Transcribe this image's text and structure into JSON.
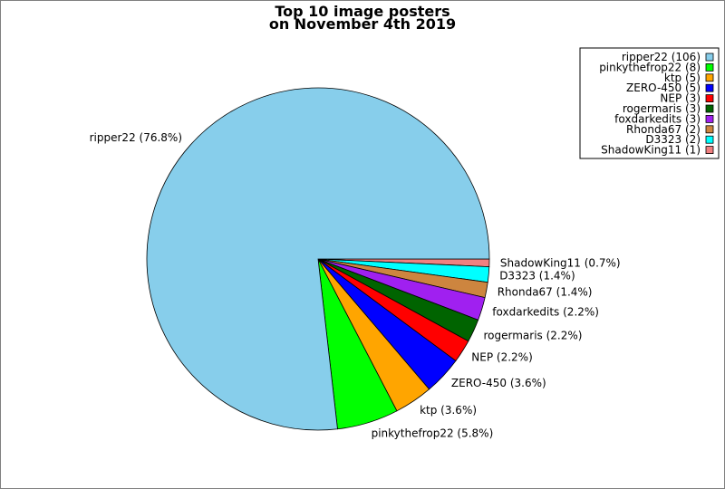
{
  "chart_data": {
    "type": "pie",
    "title": "Top 10 image posters",
    "subtitle": "on November 4th 2019",
    "slices": [
      {
        "name": "ripper22",
        "value": 106,
        "percent_label": "ripper22 (76.8%)",
        "legend_label": "ripper22 (106)",
        "color": "#87ceeb"
      },
      {
        "name": "pinkythefrop22",
        "value": 8,
        "percent_label": "pinkythefrop22 (5.8%)",
        "legend_label": "pinkythefrop22 (8)",
        "color": "#00ff00"
      },
      {
        "name": "ktp",
        "value": 5,
        "percent_label": "ktp (3.6%)",
        "legend_label": "ktp (5)",
        "color": "#ffa500"
      },
      {
        "name": "ZERO-450",
        "value": 5,
        "percent_label": "ZERO-450 (3.6%)",
        "legend_label": "ZERO-450 (5)",
        "color": "#0000ff"
      },
      {
        "name": "NEP",
        "value": 3,
        "percent_label": "NEP (2.2%)",
        "legend_label": "NEP (3)",
        "color": "#ff0000"
      },
      {
        "name": "rogermaris",
        "value": 3,
        "percent_label": "rogermaris (2.2%)",
        "legend_label": "rogermaris (3)",
        "color": "#006400"
      },
      {
        "name": "foxdarkedits",
        "value": 3,
        "percent_label": "foxdarkedits (2.2%)",
        "legend_label": "foxdarkedits (3)",
        "color": "#a020f0"
      },
      {
        "name": "Rhonda67",
        "value": 2,
        "percent_label": "Rhonda67 (1.4%)",
        "legend_label": "Rhonda67 (2)",
        "color": "#cd853f"
      },
      {
        "name": "D3323",
        "value": 2,
        "percent_label": "D3323 (1.4%)",
        "legend_label": "D3323 (2)",
        "color": "#00ffff"
      },
      {
        "name": "ShadowKing11",
        "value": 1,
        "percent_label": "ShadowKing11 (0.7%)",
        "legend_label": "ShadowKing11 (1)",
        "color": "#f08080"
      }
    ],
    "legend_position": "top-right"
  }
}
